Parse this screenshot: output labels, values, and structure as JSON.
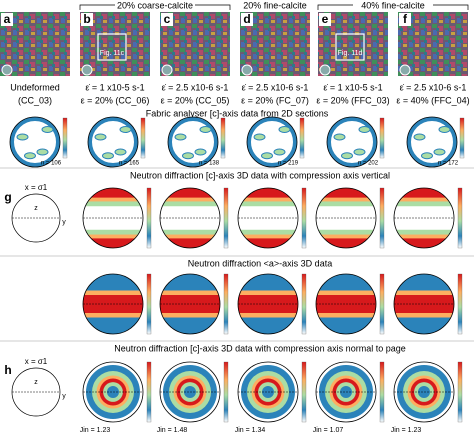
{
  "header": {
    "groups": [
      "20% coarse-calcite",
      "20% fine-calcite",
      "40% fine-calcite"
    ]
  },
  "panels": [
    {
      "letter": "a",
      "lines": [
        "Undeformed",
        "(CC_03)"
      ]
    },
    {
      "letter": "b",
      "lines": [
        "ε̇ = 1 x10-5 s-1",
        "ε = 20% (CC_06)"
      ],
      "inset": "Fig. 11c"
    },
    {
      "letter": "c",
      "lines": [
        "ε̇ = 2.5 x10-6 s-1",
        "ε = 20% (CC_05)"
      ]
    },
    {
      "letter": "d",
      "lines": [
        "ε̇ = 2.5 x10-6 s-1",
        "ε = 20% (FC_07)"
      ]
    },
    {
      "letter": "e",
      "lines": [
        "ε̇ = 1 x10-5 s-1",
        "ε = 20% (FFC_03)"
      ],
      "inset": "Fig. 11d"
    },
    {
      "letter": "f",
      "lines": [
        "ε̇ = 2.5 x10-6 s-1",
        "ε = 40% (FFC_04)"
      ]
    }
  ],
  "rows": [
    {
      "title": "Fabric analyser [c]-axis data from 2D sections",
      "labels": [
        "n = 106",
        "n = 165",
        "n = 138",
        "n = 219",
        "n = 202",
        "n = 172"
      ]
    },
    {
      "letter": "g",
      "title": "Neutron diffraction [c]-axis 3D data with compression axis vertical",
      "schematic": [
        "x = σ1",
        "z",
        "y"
      ]
    },
    {
      "title": "Neutron diffraction <a>-axis 3D data"
    },
    {
      "letter": "h",
      "title": "Neutron diffraction [c]-axis 3D data with compression axis normal to page",
      "schematic": [
        "x = σ1",
        "z",
        "y"
      ],
      "labels": [
        "Jin = 1.23",
        "Jin = 1.48",
        "Jin = 1.34",
        "Jin = 1.07",
        "Jin = 1.23"
      ]
    }
  ]
}
